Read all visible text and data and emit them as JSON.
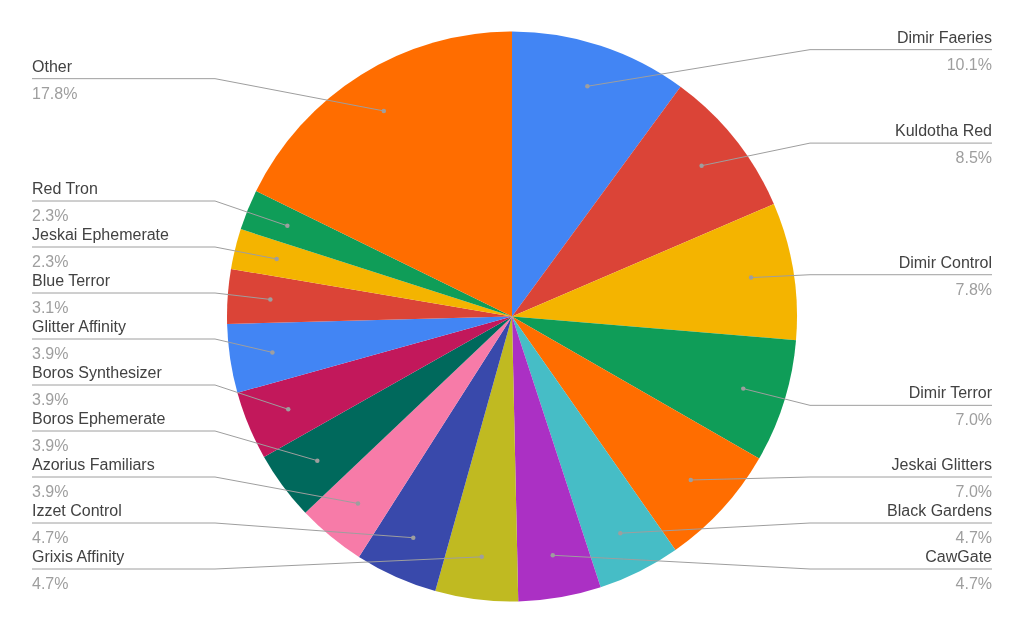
{
  "chart_data": {
    "type": "pie",
    "categories": [
      "Dimir Faeries",
      "Kuldotha Red",
      "Dimir Control",
      "Dimir Terror",
      "Jeskai Glitters",
      "Black Gardens",
      "CawGate",
      "Grixis Affinity",
      "Izzet Control",
      "Azorius Familiars",
      "Boros Ephemerate",
      "Boros Synthesizer",
      "Glitter Affinity",
      "Blue Terror",
      "Jeskai Ephemerate",
      "Red Tron",
      "Other"
    ],
    "values": [
      10.1,
      8.5,
      7.8,
      7.0,
      7.0,
      4.7,
      4.7,
      4.7,
      4.7,
      3.9,
      3.9,
      3.9,
      3.9,
      3.1,
      2.3,
      2.3,
      17.8
    ],
    "value_labels": [
      "10.1%",
      "8.5%",
      "7.8%",
      "7.0%",
      "7.0%",
      "4.7%",
      "4.7%",
      "4.7%",
      "4.7%",
      "3.9%",
      "3.9%",
      "3.9%",
      "3.9%",
      "3.1%",
      "2.3%",
      "2.3%",
      "17.8%"
    ],
    "colors": [
      "#4285f4",
      "#db4437",
      "#f4b400",
      "#0f9d58",
      "#ff6d00",
      "#46bdc6",
      "#ab30c4",
      "#c0ba21",
      "#3949ab",
      "#f77ba8",
      "#00695c",
      "#c2185b",
      "#4285f4",
      "#db4437",
      "#f4b400",
      "#0f9d58",
      "#ff6d00"
    ]
  }
}
